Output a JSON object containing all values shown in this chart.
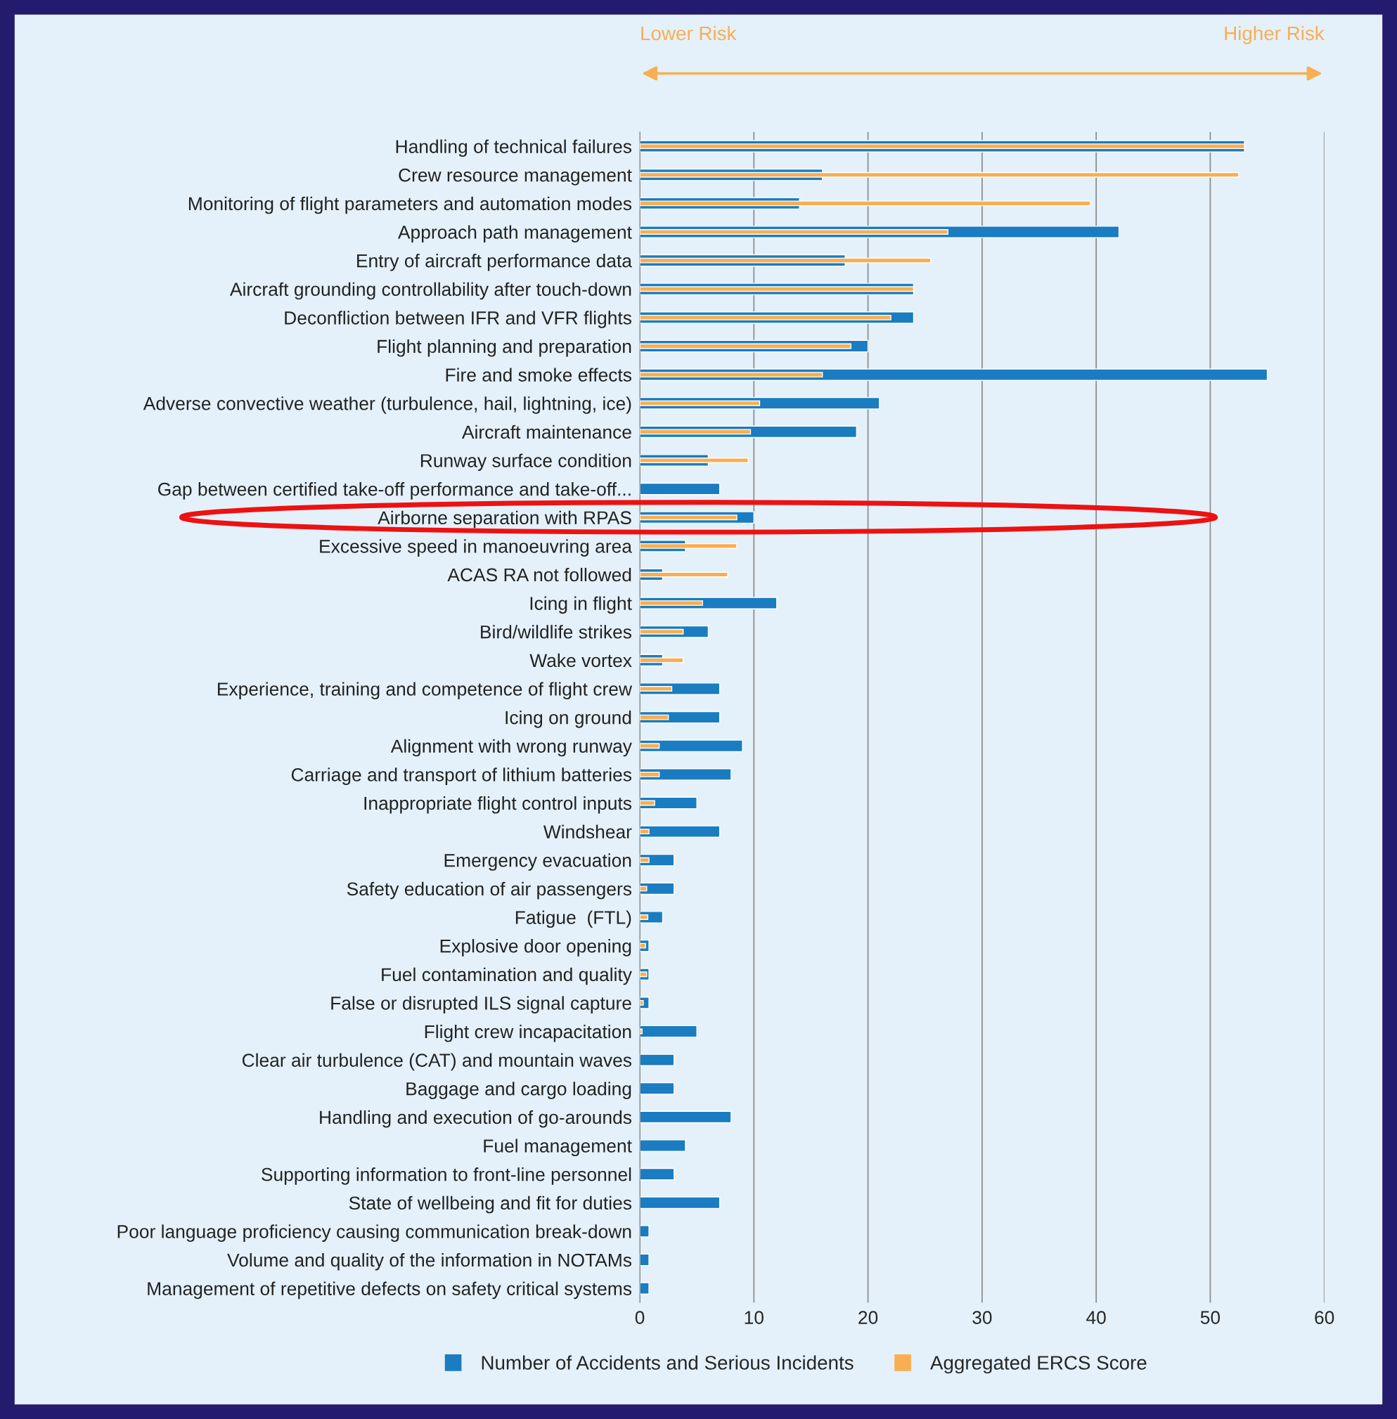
{
  "chart_data": {
    "type": "bar",
    "orientation": "horizontal",
    "categories": [
      "Handling of technical failures",
      "Crew resource management",
      "Monitoring of flight parameters and automation modes",
      "Approach path management",
      "Entry of aircraft performance data",
      "Aircraft grounding controllability after touch-down",
      "Deconfliction between IFR and VFR flights",
      "Flight planning and preparation",
      "Fire and smoke effects",
      "Adverse convective weather (turbulence, hail, lightning, ice)",
      "Aircraft maintenance",
      "Runway surface condition",
      "Gap between certified take-off performance and take-off...",
      "Airborne separation with RPAS",
      "Excessive speed in manoeuvring area",
      "ACAS RA not followed",
      "Icing in flight",
      "Bird/wildlife strikes",
      "Wake vortex",
      "Experience, training and competence of flight crew",
      "Icing on ground",
      "Alignment with wrong runway",
      "Carriage and transport of lithium batteries",
      "Inappropriate flight control inputs",
      "Windshear",
      "Emergency evacuation",
      "Safety education of air passengers",
      "Fatigue  (FTL)",
      "Explosive door opening",
      "Fuel contamination and quality",
      "False or disrupted ILS signal capture",
      "Flight crew incapacitation",
      "Clear air turbulence (CAT) and mountain waves",
      "Baggage and cargo loading",
      "Handling and execution of go-arounds",
      "Fuel management",
      "Supporting information to front-line personnel",
      "State of wellbeing and fit for duties",
      "Poor language proficiency causing communication break-down",
      "Volume and quality of the information in NOTAMs",
      "Management of repetitive defects on safety critical systems"
    ],
    "series": [
      {
        "name": "Number of Accidents and Serious Incidents",
        "color": "#1a7cc1",
        "values": [
          53,
          16,
          14,
          42,
          18,
          24,
          24,
          20,
          55,
          21,
          19,
          6,
          7,
          10,
          4,
          2,
          12,
          6,
          2,
          7,
          7,
          9,
          8,
          5,
          7,
          3,
          3,
          2,
          0.8,
          0.8,
          0.8,
          5,
          3,
          3,
          8,
          4,
          3,
          7,
          0.8,
          0.8,
          0.8
        ]
      },
      {
        "name": "Aggregated ERCS Score",
        "color": "#f9ae51",
        "values": [
          53,
          52.5,
          39.5,
          27,
          25.5,
          24,
          22,
          18.5,
          16,
          10.5,
          9.7,
          9.5,
          null,
          8.5,
          8.5,
          7.7,
          5.5,
          3.8,
          3.8,
          2.8,
          2.5,
          1.7,
          1.7,
          1.3,
          0.8,
          0.8,
          0.6,
          0.7,
          0.5,
          0.6,
          0.3,
          0.2,
          null,
          null,
          null,
          null,
          null,
          null,
          null,
          null,
          null
        ]
      }
    ],
    "xlim": [
      0,
      60
    ],
    "xticks": [
      0,
      10,
      20,
      30,
      40,
      50,
      60
    ],
    "grid": "x",
    "legend": "bottom",
    "annotations": [
      "Lower Risk",
      "Higher Risk"
    ]
  }
}
